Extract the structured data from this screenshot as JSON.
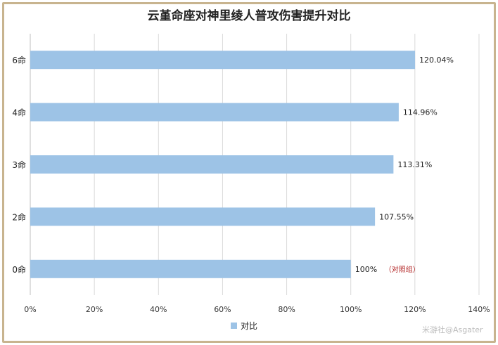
{
  "chart_data": {
    "type": "bar",
    "orientation": "horizontal",
    "title": "云堇命座对神里绫人普攻伤害提升对比",
    "categories": [
      "6命",
      "4命",
      "3命",
      "2命",
      "0命"
    ],
    "series": [
      {
        "name": "对比",
        "values": [
          120.04,
          114.96,
          113.31,
          107.55,
          100
        ]
      }
    ],
    "data_labels": [
      "120.04%",
      "114.96%",
      "113.31%",
      "107.55%",
      "100%"
    ],
    "annotations": [
      {
        "category": "0命",
        "text": "（对照组）"
      }
    ],
    "xlim": [
      0,
      140
    ],
    "x_ticks": [
      "0%",
      "20%",
      "40%",
      "60%",
      "80%",
      "100%",
      "120%",
      "140%"
    ],
    "grid": "vertical",
    "legend_position": "bottom",
    "bar_color": "#9dc3e6"
  },
  "watermark": "米游社@Asgater"
}
